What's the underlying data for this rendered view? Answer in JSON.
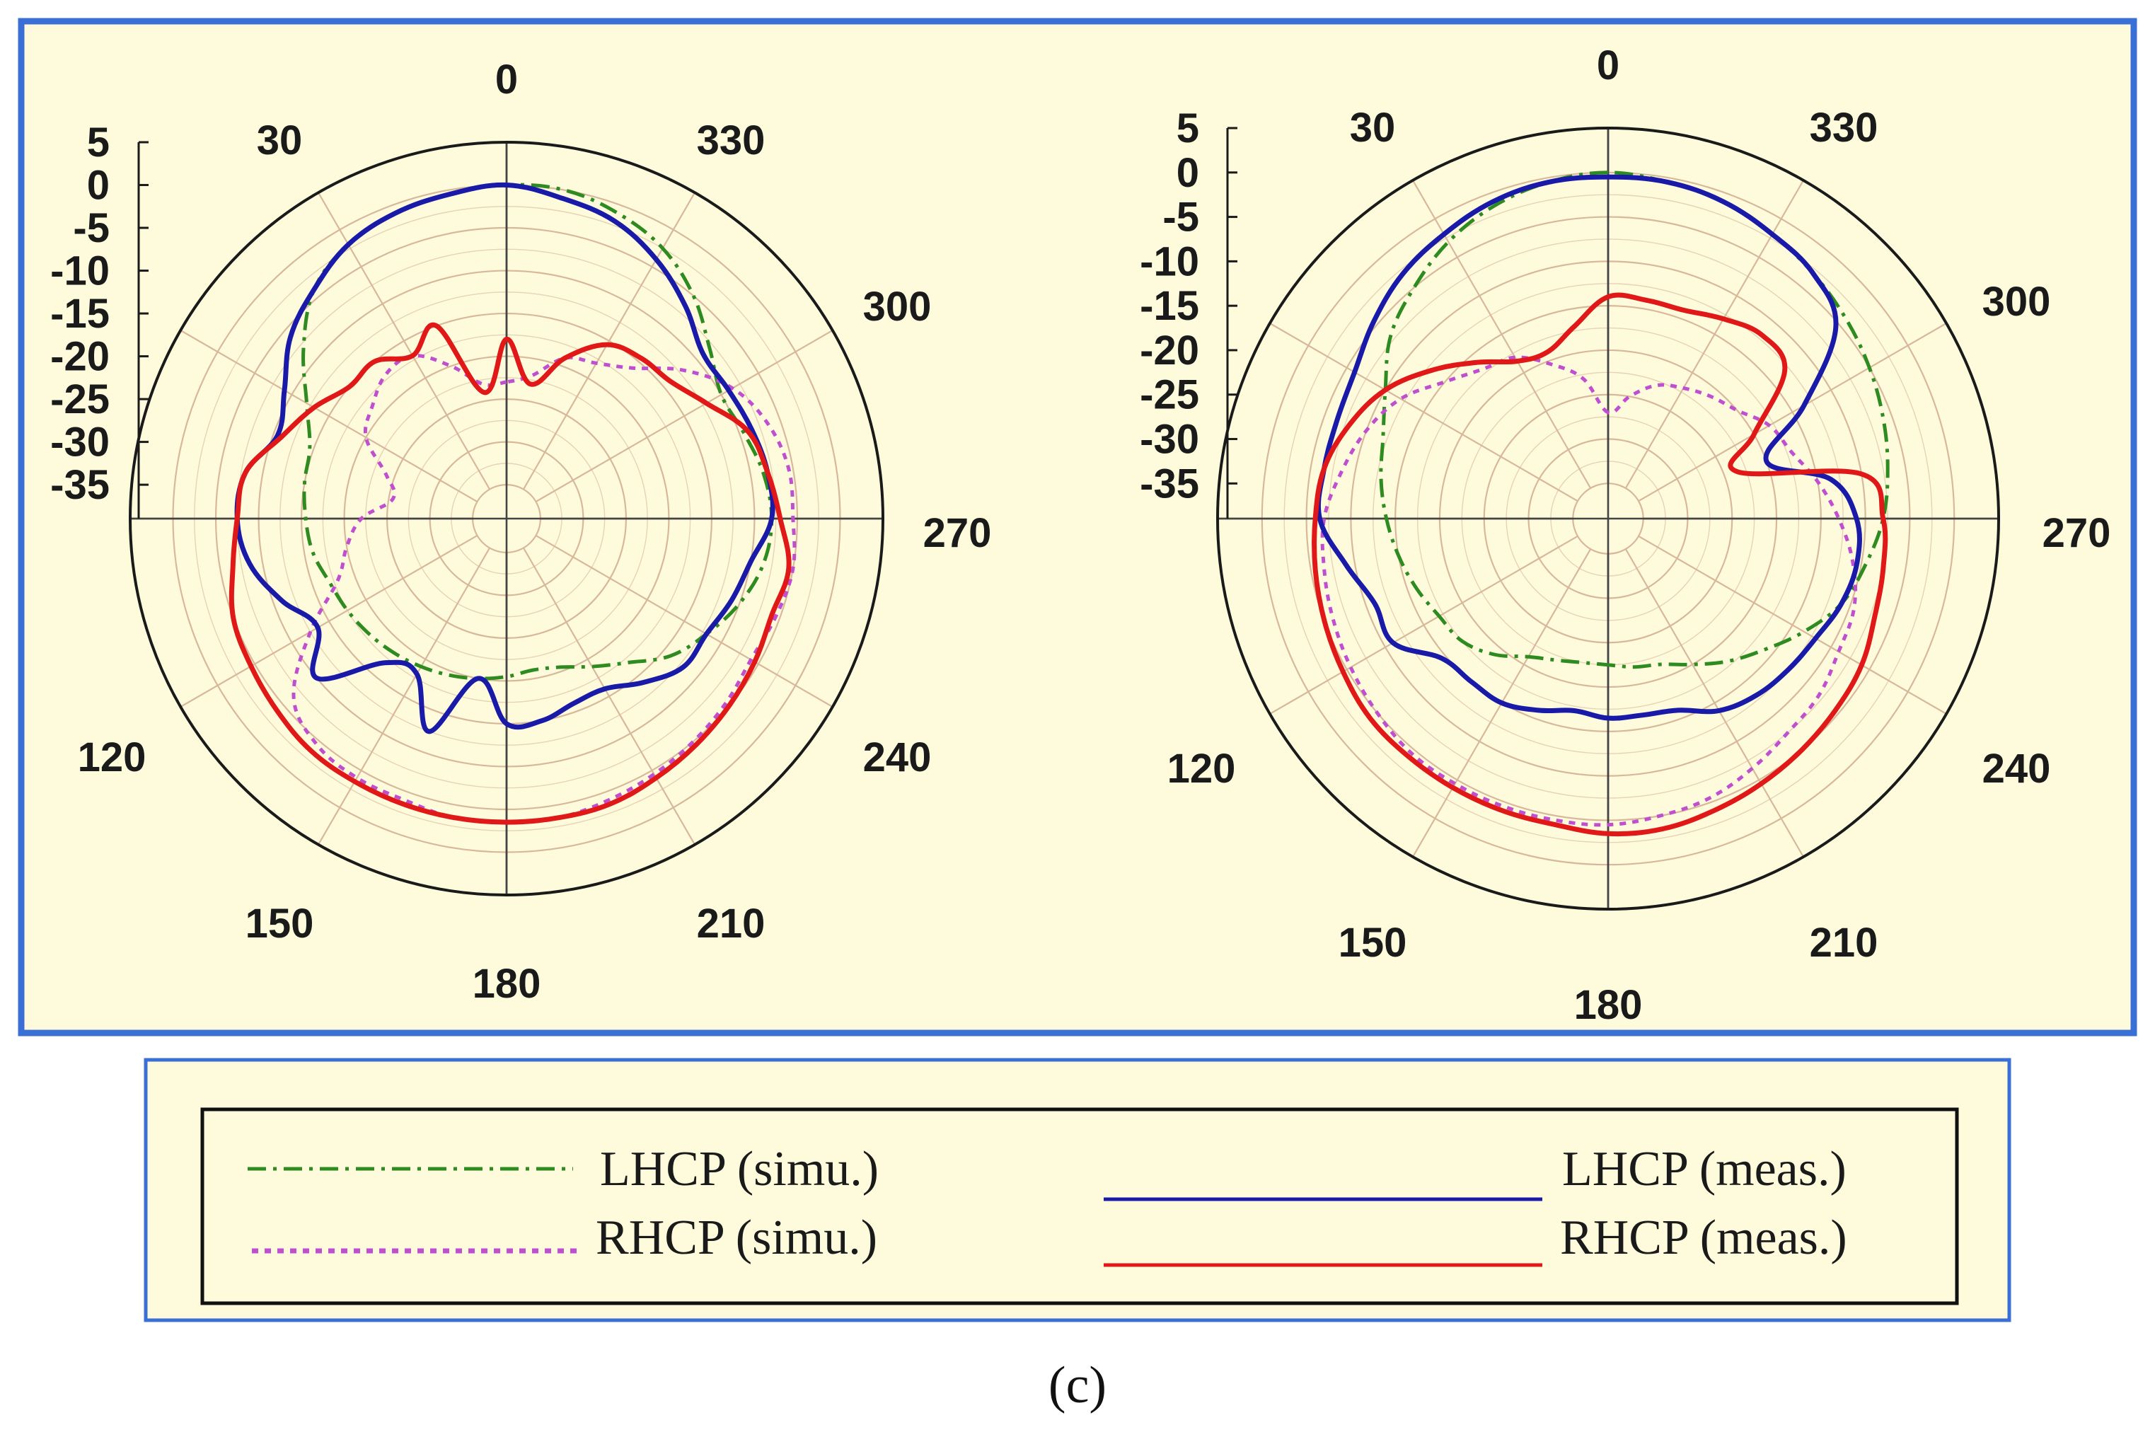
{
  "figure": {
    "caption": "(c)",
    "panel_background": "#fdfbdc",
    "panel_border_color": "#3a6fd6"
  },
  "series_styles": {
    "lhcp_simu": {
      "color": "#2e8b20",
      "dash": "dash-dot"
    },
    "rhcp_simu": {
      "color": "#c04fd0",
      "dash": "dotted"
    },
    "lhcp_meas": {
      "color": "#1a1aa8",
      "dash": "solid"
    },
    "rhcp_meas": {
      "color": "#e01818",
      "dash": "solid"
    }
  },
  "legend": {
    "entries": [
      {
        "key": "lhcp_simu",
        "label": "LHCP (simu.)"
      },
      {
        "key": "lhcp_meas",
        "label": "LHCP (meas.)"
      },
      {
        "key": "rhcp_simu",
        "label": "RHCP (simu.)"
      },
      {
        "key": "rhcp_meas",
        "label": "RHCP (meas.)"
      }
    ]
  },
  "chart_data": [
    {
      "type": "polar-line",
      "angle_direction": "counterclockwise",
      "zero_position": "top",
      "radial_range": [
        -35,
        5
      ],
      "radial_ticks": [
        "5",
        "0",
        "-5",
        "-10",
        "-15",
        "-20",
        "-25",
        "-30",
        "-35"
      ],
      "angle_tick_labels": [
        "0",
        "30",
        "330",
        "300",
        "270",
        "240",
        "210",
        "180",
        "150",
        "120"
      ],
      "series": [
        {
          "key": "lhcp_simu",
          "name": "LHCP (simu.)",
          "angles": [
            0,
            10,
            20,
            30,
            40,
            50,
            60,
            70,
            80,
            90,
            100,
            110,
            120,
            130,
            140,
            150,
            160,
            170,
            180,
            190,
            200,
            210,
            220,
            230,
            240,
            250,
            260,
            270,
            280,
            290,
            300,
            310,
            320,
            330,
            340,
            350
          ],
          "values": [
            0,
            -0.5,
            -1,
            -2,
            -4,
            -8,
            -12,
            -14.5,
            -15,
            -15.5,
            -16,
            -17,
            -17.5,
            -18,
            -18.5,
            -19,
            -19.5,
            -20,
            -20.5,
            -21,
            -20.5,
            -19,
            -17,
            -14,
            -12,
            -10,
            -8.5,
            -8,
            -8.5,
            -9.5,
            -10,
            -8,
            -5,
            -2.5,
            -1,
            0
          ]
        },
        {
          "key": "rhcp_simu",
          "name": "RHCP (simu.)",
          "angles": [
            0,
            10,
            20,
            30,
            40,
            50,
            60,
            70,
            80,
            90,
            100,
            110,
            120,
            130,
            140,
            150,
            160,
            170,
            180,
            190,
            200,
            210,
            220,
            230,
            240,
            250,
            260,
            270,
            280,
            290,
            300,
            310,
            320,
            330,
            340,
            350
          ],
          "values": [
            -23,
            -23,
            -20,
            -17,
            -17,
            -18.5,
            -20,
            -24,
            -25.5,
            -22,
            -20,
            -18,
            -12.5,
            -6.5,
            -4.5,
            -4,
            -4,
            -3.5,
            -3.5,
            -3.5,
            -4,
            -4.5,
            -5,
            -5.5,
            -6,
            -5.5,
            -5,
            -5.5,
            -5.5,
            -6.5,
            -8.5,
            -12,
            -16,
            -18,
            -19,
            -22
          ]
        },
        {
          "key": "lhcp_meas",
          "name": "LHCP (meas.)",
          "angles": [
            0,
            10,
            20,
            30,
            40,
            50,
            60,
            70,
            80,
            90,
            100,
            110,
            120,
            130,
            140,
            150,
            160,
            170,
            180,
            190,
            200,
            210,
            220,
            230,
            240,
            250,
            260,
            270,
            280,
            290,
            300,
            310,
            320,
            330,
            340,
            350
          ],
          "values": [
            0,
            -0.5,
            -1,
            -2,
            -4,
            -6,
            -9,
            -10.5,
            -8,
            -7.5,
            -8.5,
            -11,
            -13.5,
            -10,
            -17,
            -18,
            -12.5,
            -20,
            -15,
            -15,
            -16,
            -16,
            -14,
            -12,
            -12,
            -11,
            -10,
            -8,
            -8,
            -8.5,
            -9,
            -9,
            -6.5,
            -4,
            -2,
            -1
          ]
        },
        {
          "key": "rhcp_meas",
          "name": "RHCP (meas.)",
          "angles": [
            0,
            10,
            20,
            30,
            40,
            50,
            60,
            70,
            80,
            90,
            100,
            110,
            120,
            130,
            140,
            150,
            160,
            170,
            180,
            190,
            200,
            210,
            220,
            230,
            240,
            250,
            260,
            270,
            280,
            290,
            300,
            310,
            320,
            330,
            340,
            350
          ],
          "values": [
            -18,
            -24,
            -15,
            -17,
            -15,
            -15,
            -13,
            -11,
            -8,
            -7.5,
            -6.5,
            -5,
            -4.5,
            -4,
            -3.5,
            -3.5,
            -3.5,
            -3.5,
            -3.5,
            -3.5,
            -3.5,
            -4,
            -4.5,
            -5,
            -5.5,
            -6,
            -5.5,
            -7,
            -8,
            -9,
            -12,
            -14,
            -14.5,
            -15.5,
            -19,
            -23
          ]
        }
      ]
    },
    {
      "type": "polar-line",
      "angle_direction": "counterclockwise",
      "zero_position": "top",
      "radial_range": [
        -35,
        5
      ],
      "radial_ticks": [
        "5",
        "0",
        "-5",
        "-10",
        "-15",
        "-20",
        "-25",
        "-30",
        "-35"
      ],
      "angle_tick_labels": [
        "0",
        "30",
        "330",
        "300",
        "270",
        "240",
        "210",
        "180",
        "150",
        "120"
      ],
      "series": [
        {
          "key": "lhcp_simu",
          "name": "LHCP (simu.)",
          "angles": [
            0,
            10,
            20,
            30,
            40,
            50,
            60,
            70,
            80,
            90,
            100,
            110,
            120,
            130,
            140,
            150,
            160,
            170,
            180,
            190,
            200,
            210,
            220,
            230,
            240,
            250,
            260,
            270,
            280,
            290,
            300,
            310,
            320,
            330,
            340,
            350
          ],
          "values": [
            0,
            -0.5,
            -1.5,
            -3,
            -5,
            -7,
            -10,
            -12,
            -13,
            -14,
            -15,
            -16,
            -17,
            -17.5,
            -19,
            -21,
            -22,
            -22.5,
            -22.5,
            -22,
            -21.5,
            -20,
            -18,
            -16,
            -13.5,
            -11,
            -9.5,
            -8,
            -7,
            -6,
            -5,
            -4,
            -3,
            -2,
            -1,
            -0.5
          ]
        },
        {
          "key": "rhcp_simu",
          "name": "RHCP (simu.)",
          "angles": [
            0,
            10,
            20,
            30,
            40,
            50,
            60,
            70,
            80,
            90,
            100,
            110,
            120,
            130,
            140,
            150,
            160,
            170,
            180,
            190,
            200,
            210,
            220,
            230,
            240,
            250,
            260,
            270,
            280,
            290,
            300,
            310,
            320,
            330,
            340,
            350
          ],
          "values": [
            -27,
            -23,
            -20.5,
            -18,
            -17,
            -15,
            -12,
            -10,
            -8.5,
            -7,
            -6.5,
            -6,
            -5.5,
            -5,
            -4.5,
            -4.5,
            -4.5,
            -4.5,
            -4.5,
            -5,
            -5.5,
            -6.5,
            -7.5,
            -8,
            -9,
            -9.5,
            -11,
            -13,
            -15,
            -17,
            -18,
            -20,
            -21,
            -22,
            -23,
            -25
          ]
        },
        {
          "key": "lhcp_meas",
          "name": "LHCP (meas.)",
          "angles": [
            0,
            10,
            20,
            30,
            40,
            50,
            60,
            70,
            80,
            90,
            100,
            110,
            120,
            130,
            140,
            150,
            160,
            170,
            180,
            190,
            200,
            210,
            220,
            230,
            240,
            250,
            260,
            270,
            280,
            290,
            300,
            310,
            320,
            330,
            340,
            350
          ],
          "values": [
            -0.5,
            -0.5,
            -1,
            -2,
            -3,
            -4.5,
            -6,
            -6.5,
            -6.5,
            -6.5,
            -9,
            -11,
            -11,
            -14.5,
            -15,
            -15,
            -16,
            -17,
            -16.5,
            -16.5,
            -16,
            -14,
            -13,
            -12.5,
            -12,
            -11,
            -10.5,
            -11,
            -13.5,
            -20,
            -13.5,
            -5.5,
            -3,
            -2,
            -1,
            -0.5
          ]
        },
        {
          "key": "rhcp_meas",
          "name": "RHCP (meas.)",
          "angles": [
            0,
            10,
            20,
            30,
            40,
            50,
            60,
            70,
            80,
            90,
            100,
            110,
            120,
            130,
            140,
            150,
            160,
            170,
            180,
            190,
            200,
            210,
            220,
            230,
            240,
            250,
            260,
            270,
            280,
            290,
            300,
            310,
            320,
            330,
            340,
            350
          ],
          "values": [
            -14,
            -17,
            -19,
            -18.5,
            -16,
            -13,
            -10,
            -8,
            -6.5,
            -6,
            -5.5,
            -5,
            -4.5,
            -4,
            -4,
            -4,
            -4,
            -4,
            -3.5,
            -3.5,
            -4,
            -4.5,
            -5,
            -5.5,
            -6,
            -7,
            -7.5,
            -8,
            -10,
            -23.5,
            -20,
            -13,
            -12,
            -13,
            -14,
            -14
          ]
        }
      ]
    }
  ]
}
